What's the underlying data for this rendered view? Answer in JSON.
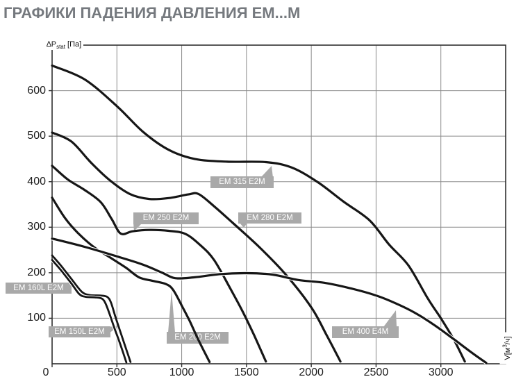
{
  "title": "ГРАФИКИ ПАДЕНИЯ ДАВЛЕНИЯ EM...M",
  "axis": {
    "y_label": {
      "main": "∆P",
      "sub": "stat",
      "unit": "[Па]"
    },
    "x_label": {
      "main": "V[м",
      "sup": "3",
      "rest": "/ч]"
    }
  },
  "colors": {
    "title": "#75797e",
    "curve": "#161616",
    "grid": "#8a8a8a",
    "border": "#2f2f2f",
    "badge_bg": "#a9a9a9",
    "badge_text": "#ffffff"
  },
  "chart_data": {
    "type": "line",
    "title": "ГРАФИКИ ПАДЕНИЯ ДАВЛЕНИЯ EM...M",
    "xlabel": "V[м³/ч]",
    "ylabel": "∆Pstat [Па]",
    "xlim": [
      0,
      3500
    ],
    "ylim": [
      0,
      700
    ],
    "x_ticks": [
      0,
      500,
      1000,
      1500,
      2000,
      2500,
      3000
    ],
    "y_ticks": [
      100,
      200,
      300,
      400,
      500,
      600
    ],
    "grid": true,
    "legend_position": "inline-callouts",
    "series": [
      {
        "name": "EM 315 E2M",
        "halo": false,
        "width": 3.2,
        "points": [
          [
            0,
            655
          ],
          [
            250,
            625
          ],
          [
            500,
            566
          ],
          [
            700,
            510
          ],
          [
            900,
            470
          ],
          [
            1100,
            450
          ],
          [
            1350,
            444
          ],
          [
            1650,
            443
          ],
          [
            1850,
            431
          ],
          [
            2050,
            399
          ],
          [
            2250,
            356
          ],
          [
            2450,
            315
          ],
          [
            2600,
            262
          ],
          [
            2750,
            216
          ],
          [
            2900,
            143
          ],
          [
            3000,
            100
          ],
          [
            3100,
            53
          ],
          [
            3185,
            5
          ]
        ]
      },
      {
        "name": "EM 280 E2M",
        "halo": false,
        "width": 3.2,
        "points": [
          [
            0,
            508
          ],
          [
            150,
            488
          ],
          [
            300,
            442
          ],
          [
            450,
            402
          ],
          [
            600,
            373
          ],
          [
            750,
            362
          ],
          [
            900,
            364
          ],
          [
            1050,
            372
          ],
          [
            1130,
            373
          ],
          [
            1250,
            346
          ],
          [
            1400,
            308
          ],
          [
            1600,
            256
          ],
          [
            1800,
            197
          ],
          [
            2000,
            124
          ],
          [
            2120,
            62
          ],
          [
            2225,
            5
          ]
        ]
      },
      {
        "name": "EM 250 E2M",
        "halo": false,
        "width": 3.2,
        "points": [
          [
            0,
            435
          ],
          [
            120,
            405
          ],
          [
            250,
            382
          ],
          [
            375,
            355
          ],
          [
            460,
            318
          ],
          [
            530,
            286
          ],
          [
            620,
            291
          ],
          [
            750,
            294
          ],
          [
            900,
            292
          ],
          [
            1030,
            285
          ],
          [
            1150,
            259
          ],
          [
            1250,
            228
          ],
          [
            1370,
            168
          ],
          [
            1470,
            115
          ],
          [
            1560,
            62
          ],
          [
            1650,
            5
          ]
        ]
      },
      {
        "name": "EM 200 E2M",
        "halo": false,
        "width": 3.2,
        "points": [
          [
            0,
            365
          ],
          [
            100,
            320
          ],
          [
            200,
            287
          ],
          [
            320,
            257
          ],
          [
            450,
            233
          ],
          [
            570,
            211
          ],
          [
            670,
            190
          ],
          [
            780,
            182
          ],
          [
            880,
            175
          ],
          [
            935,
            162
          ],
          [
            1000,
            128
          ],
          [
            1060,
            95
          ],
          [
            1130,
            52
          ],
          [
            1215,
            4
          ]
        ]
      },
      {
        "name": "EM 160L E2M",
        "halo": false,
        "width": 2.8,
        "points": [
          [
            0,
            238
          ],
          [
            70,
            215
          ],
          [
            150,
            186
          ],
          [
            230,
            158
          ],
          [
            290,
            151
          ],
          [
            370,
            150
          ],
          [
            425,
            147
          ],
          [
            455,
            134
          ],
          [
            490,
            102
          ],
          [
            525,
            72
          ],
          [
            560,
            42
          ],
          [
            605,
            4
          ]
        ]
      },
      {
        "name": "EM 150L E2M",
        "halo": true,
        "width": 2.8,
        "points": [
          [
            0,
            228
          ],
          [
            70,
            205
          ],
          [
            150,
            176
          ],
          [
            210,
            153
          ],
          [
            260,
            147
          ],
          [
            330,
            146
          ],
          [
            385,
            143
          ],
          [
            415,
            131
          ],
          [
            450,
            104
          ],
          [
            485,
            75
          ],
          [
            520,
            48
          ],
          [
            573,
            3
          ]
        ]
      },
      {
        "name": "EM 400 E4M",
        "halo": true,
        "width": 3.2,
        "points": [
          [
            0,
            275
          ],
          [
            250,
            257
          ],
          [
            500,
            236
          ],
          [
            700,
            218
          ],
          [
            850,
            200
          ],
          [
            950,
            188
          ],
          [
            1100,
            190
          ],
          [
            1300,
            197
          ],
          [
            1500,
            199
          ],
          [
            1700,
            196
          ],
          [
            1900,
            184
          ],
          [
            2100,
            178
          ],
          [
            2300,
            166
          ],
          [
            2500,
            150
          ],
          [
            2650,
            133
          ],
          [
            2800,
            112
          ],
          [
            2950,
            85
          ],
          [
            3100,
            54
          ],
          [
            3250,
            22
          ],
          [
            3350,
            2
          ]
        ]
      }
    ],
    "callout_pointers": [
      {
        "series": "EM 150L E2M",
        "polygon": [
          [
            152,
            471
          ],
          [
            170,
            470
          ],
          [
            152,
            484
          ]
        ]
      },
      {
        "series": "EM 200 E2M",
        "polygon": [
          [
            242,
            479
          ],
          [
            252,
            479
          ],
          [
            247,
            419
          ]
        ]
      },
      {
        "series": "EM 250 E2M",
        "polygon": [
          [
            192,
            321
          ],
          [
            205,
            321
          ],
          [
            193,
            333
          ]
        ]
      },
      {
        "series": "EM 280 E2M",
        "polygon": [
          [
            344,
            320
          ],
          [
            357,
            320
          ],
          [
            351,
            328
          ]
        ]
      },
      {
        "series": "EM 315 E2M",
        "polygon": [
          [
            375,
            256
          ],
          [
            393,
            256
          ],
          [
            391,
            239
          ]
        ]
      },
      {
        "series": "EM 400 E4M",
        "polygon": [
          [
            552,
            471
          ],
          [
            571,
            471
          ],
          [
            570,
            447
          ]
        ]
      }
    ]
  }
}
